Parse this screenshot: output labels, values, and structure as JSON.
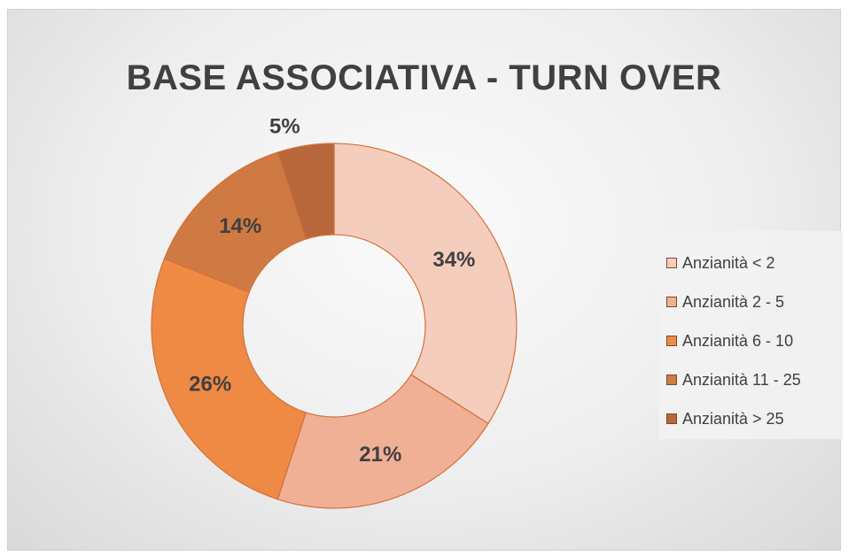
{
  "chart_data": {
    "type": "pie",
    "variant": "donut",
    "title": "BASE ASSOCIATIVA - TURN OVER",
    "categories": [
      "Anzianità < 2",
      "Anzianità 2 - 5",
      "Anzianità 6 - 10",
      "Anzianità 11 - 25",
      "Anzianità > 25"
    ],
    "values": [
      34,
      21,
      26,
      14,
      5
    ],
    "value_labels": [
      "34%",
      "21%",
      "26%",
      "14%",
      "5%"
    ],
    "colors": [
      "#f4cdbd",
      "#efb096",
      "#ee8a44",
      "#cf7a42",
      "#b8673c"
    ],
    "stroke_color": "#d4703a",
    "legend_position": "right"
  }
}
